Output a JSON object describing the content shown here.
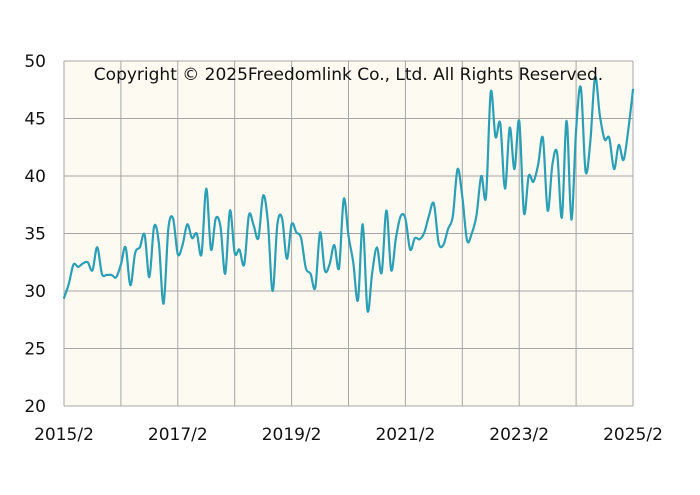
{
  "copyright": "Copyright © 2025Freedomlink Co., Ltd. All Rights Reserved.",
  "colors": {
    "plot_background": "#fdfaf1",
    "series": "#2a9fb5",
    "grid": "#a6a6a6"
  },
  "chart_data": {
    "type": "line",
    "title": "",
    "xlabel": "",
    "ylabel": "",
    "grid": true,
    "ylim": [
      20,
      50
    ],
    "yticks": [
      20,
      25,
      30,
      35,
      40,
      45,
      50
    ],
    "xlim": [
      "2015/2",
      "2025/2"
    ],
    "xtick_labels": [
      "2015/2",
      "2017/2",
      "2019/2",
      "2021/2",
      "2023/2",
      "2025/2"
    ],
    "series": [
      {
        "points": [
          [
            "2015/2",
            29.4
          ],
          [
            "2015/3",
            30.6
          ],
          [
            "2015/4",
            32.3
          ],
          [
            "2015/5",
            32.1
          ],
          [
            "2015/6",
            32.4
          ],
          [
            "2015/7",
            32.5
          ],
          [
            "2015/8",
            31.8
          ],
          [
            "2015/9",
            33.8
          ],
          [
            "2015/10",
            31.5
          ],
          [
            "2015/11",
            31.4
          ],
          [
            "2015/12",
            31.4
          ],
          [
            "2016/1",
            31.2
          ],
          [
            "2016/2",
            32.3
          ],
          [
            "2016/3",
            33.8
          ],
          [
            "2016/4",
            30.5
          ],
          [
            "2016/5",
            33.3
          ],
          [
            "2016/6",
            33.8
          ],
          [
            "2016/7",
            34.9
          ],
          [
            "2016/8",
            31.2
          ],
          [
            "2016/9",
            35.6
          ],
          [
            "2016/10",
            34.2
          ],
          [
            "2016/11",
            28.9
          ],
          [
            "2016/12",
            35.4
          ],
          [
            "2017/1",
            36.3
          ],
          [
            "2017/2",
            33.2
          ],
          [
            "2017/3",
            34.0
          ],
          [
            "2017/4",
            35.8
          ],
          [
            "2017/5",
            34.6
          ],
          [
            "2017/6",
            35.0
          ],
          [
            "2017/7",
            33.2
          ],
          [
            "2017/8",
            38.9
          ],
          [
            "2017/9",
            33.6
          ],
          [
            "2017/10",
            36.3
          ],
          [
            "2017/11",
            35.6
          ],
          [
            "2017/12",
            31.5
          ],
          [
            "2018/1",
            37.0
          ],
          [
            "2018/2",
            33.3
          ],
          [
            "2018/3",
            33.6
          ],
          [
            "2018/4",
            32.3
          ],
          [
            "2018/5",
            36.6
          ],
          [
            "2018/6",
            35.7
          ],
          [
            "2018/7",
            34.6
          ],
          [
            "2018/8",
            38.3
          ],
          [
            "2018/9",
            36.0
          ],
          [
            "2018/10",
            30.0
          ],
          [
            "2018/11",
            35.8
          ],
          [
            "2018/12",
            36.3
          ],
          [
            "2019/1",
            32.8
          ],
          [
            "2019/2",
            35.8
          ],
          [
            "2019/3",
            35.1
          ],
          [
            "2019/4",
            34.6
          ],
          [
            "2019/5",
            32.0
          ],
          [
            "2019/6",
            31.5
          ],
          [
            "2019/7",
            30.3
          ],
          [
            "2019/8",
            35.1
          ],
          [
            "2019/9",
            31.8
          ],
          [
            "2019/10",
            32.3
          ],
          [
            "2019/11",
            34.0
          ],
          [
            "2019/12",
            32.0
          ],
          [
            "2020/1",
            38.0
          ],
          [
            "2020/2",
            34.8
          ],
          [
            "2020/3",
            32.5
          ],
          [
            "2020/4",
            29.2
          ],
          [
            "2020/5",
            35.8
          ],
          [
            "2020/6",
            28.3
          ],
          [
            "2020/7",
            31.6
          ],
          [
            "2020/8",
            33.8
          ],
          [
            "2020/9",
            31.6
          ],
          [
            "2020/10",
            37.0
          ],
          [
            "2020/11",
            31.8
          ],
          [
            "2020/12",
            34.6
          ],
          [
            "2021/1",
            36.5
          ],
          [
            "2021/2",
            36.3
          ],
          [
            "2021/3",
            33.6
          ],
          [
            "2021/4",
            34.6
          ],
          [
            "2021/5",
            34.5
          ],
          [
            "2021/6",
            35.1
          ],
          [
            "2021/7",
            36.6
          ],
          [
            "2021/8",
            37.6
          ],
          [
            "2021/9",
            34.2
          ],
          [
            "2021/10",
            34.0
          ],
          [
            "2021/11",
            35.4
          ],
          [
            "2021/12",
            36.5
          ],
          [
            "2022/1",
            40.6
          ],
          [
            "2022/2",
            38.2
          ],
          [
            "2022/3",
            34.4
          ],
          [
            "2022/4",
            35.0
          ],
          [
            "2022/5",
            36.6
          ],
          [
            "2022/6",
            40.0
          ],
          [
            "2022/7",
            38.2
          ],
          [
            "2022/8",
            47.3
          ],
          [
            "2022/9",
            43.4
          ],
          [
            "2022/10",
            44.6
          ],
          [
            "2022/11",
            38.9
          ],
          [
            "2022/12",
            44.2
          ],
          [
            "2023/1",
            40.6
          ],
          [
            "2023/2",
            44.8
          ],
          [
            "2023/3",
            36.8
          ],
          [
            "2023/4",
            40.0
          ],
          [
            "2023/5",
            39.5
          ],
          [
            "2023/6",
            41.0
          ],
          [
            "2023/7",
            43.3
          ],
          [
            "2023/8",
            37.0
          ],
          [
            "2023/9",
            41.0
          ],
          [
            "2023/10",
            42.0
          ],
          [
            "2023/11",
            36.4
          ],
          [
            "2023/12",
            44.8
          ],
          [
            "2024/1",
            36.2
          ],
          [
            "2024/2",
            44.0
          ],
          [
            "2024/3",
            47.7
          ],
          [
            "2024/4",
            40.4
          ],
          [
            "2024/5",
            43.0
          ],
          [
            "2024/6",
            48.6
          ],
          [
            "2024/7",
            45.3
          ],
          [
            "2024/8",
            43.2
          ],
          [
            "2024/9",
            43.3
          ],
          [
            "2024/10",
            40.6
          ],
          [
            "2024/11",
            42.7
          ],
          [
            "2024/12",
            41.4
          ],
          [
            "2025/1",
            44.0
          ],
          [
            "2025/2",
            47.5
          ]
        ]
      }
    ]
  }
}
